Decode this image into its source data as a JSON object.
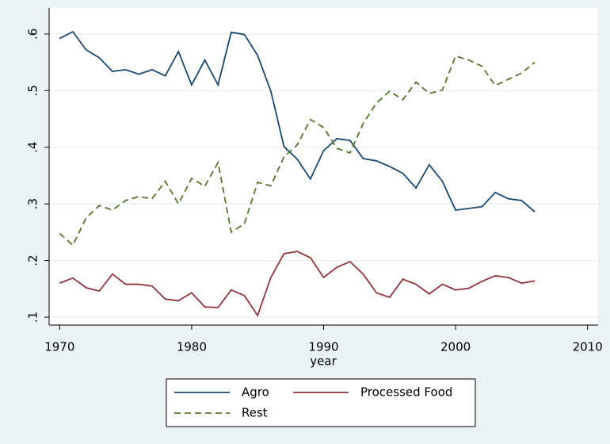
{
  "chart_data": {
    "type": "line",
    "x_label": "year",
    "x": [
      1970,
      1971,
      1972,
      1973,
      1974,
      1975,
      1976,
      1977,
      1978,
      1979,
      1980,
      1981,
      1982,
      1983,
      1984,
      1985,
      1986,
      1987,
      1988,
      1989,
      1990,
      1991,
      1992,
      1993,
      1994,
      1995,
      1996,
      1997,
      1998,
      1999,
      2000,
      2001,
      2002,
      2003,
      2004,
      2005,
      2006
    ],
    "series": [
      {
        "name": "Agro",
        "color": "#1a476f",
        "style": "solid",
        "values": [
          0.592,
          0.604,
          0.572,
          0.558,
          0.534,
          0.537,
          0.529,
          0.537,
          0.526,
          0.569,
          0.51,
          0.554,
          0.51,
          0.603,
          0.599,
          0.562,
          0.499,
          0.401,
          0.379,
          0.344,
          0.394,
          0.415,
          0.412,
          0.38,
          0.376,
          0.366,
          0.354,
          0.328,
          0.369,
          0.34,
          0.289,
          0.292,
          0.295,
          0.32,
          0.309,
          0.306,
          0.286
        ]
      },
      {
        "name": "Processed Food",
        "color": "#90353b",
        "style": "solid",
        "values": [
          0.16,
          0.169,
          0.152,
          0.146,
          0.176,
          0.158,
          0.158,
          0.155,
          0.132,
          0.129,
          0.143,
          0.118,
          0.117,
          0.148,
          0.138,
          0.103,
          0.17,
          0.212,
          0.216,
          0.205,
          0.17,
          0.188,
          0.198,
          0.176,
          0.143,
          0.135,
          0.167,
          0.158,
          0.141,
          0.158,
          0.148,
          0.151,
          0.163,
          0.173,
          0.17,
          0.16,
          0.164
        ]
      },
      {
        "name": "Rest",
        "color": "#55752f",
        "style": "dashed",
        "values": [
          0.248,
          0.227,
          0.275,
          0.297,
          0.289,
          0.306,
          0.313,
          0.309,
          0.34,
          0.3,
          0.345,
          0.331,
          0.373,
          0.25,
          0.265,
          0.338,
          0.332,
          0.383,
          0.404,
          0.449,
          0.435,
          0.398,
          0.39,
          0.442,
          0.478,
          0.499,
          0.484,
          0.515,
          0.495,
          0.501,
          0.561,
          0.554,
          0.543,
          0.509,
          0.52,
          0.531,
          0.55
        ]
      }
    ],
    "xlim": [
      1969.2,
      2010.8
    ],
    "xticks": [
      1970,
      1980,
      1990,
      2000,
      2010
    ],
    "ylim": [
      0.086,
      0.646
    ],
    "yticks": [
      {
        "value": 0.1,
        "label": ".1"
      },
      {
        "value": 0.2,
        "label": ".2"
      },
      {
        "value": 0.3,
        "label": ".3"
      },
      {
        "value": 0.4,
        "label": ".4"
      },
      {
        "value": 0.5,
        "label": ".5"
      },
      {
        "value": 0.6,
        "label": ".6"
      }
    ],
    "grid": true,
    "legend": "bottom"
  }
}
